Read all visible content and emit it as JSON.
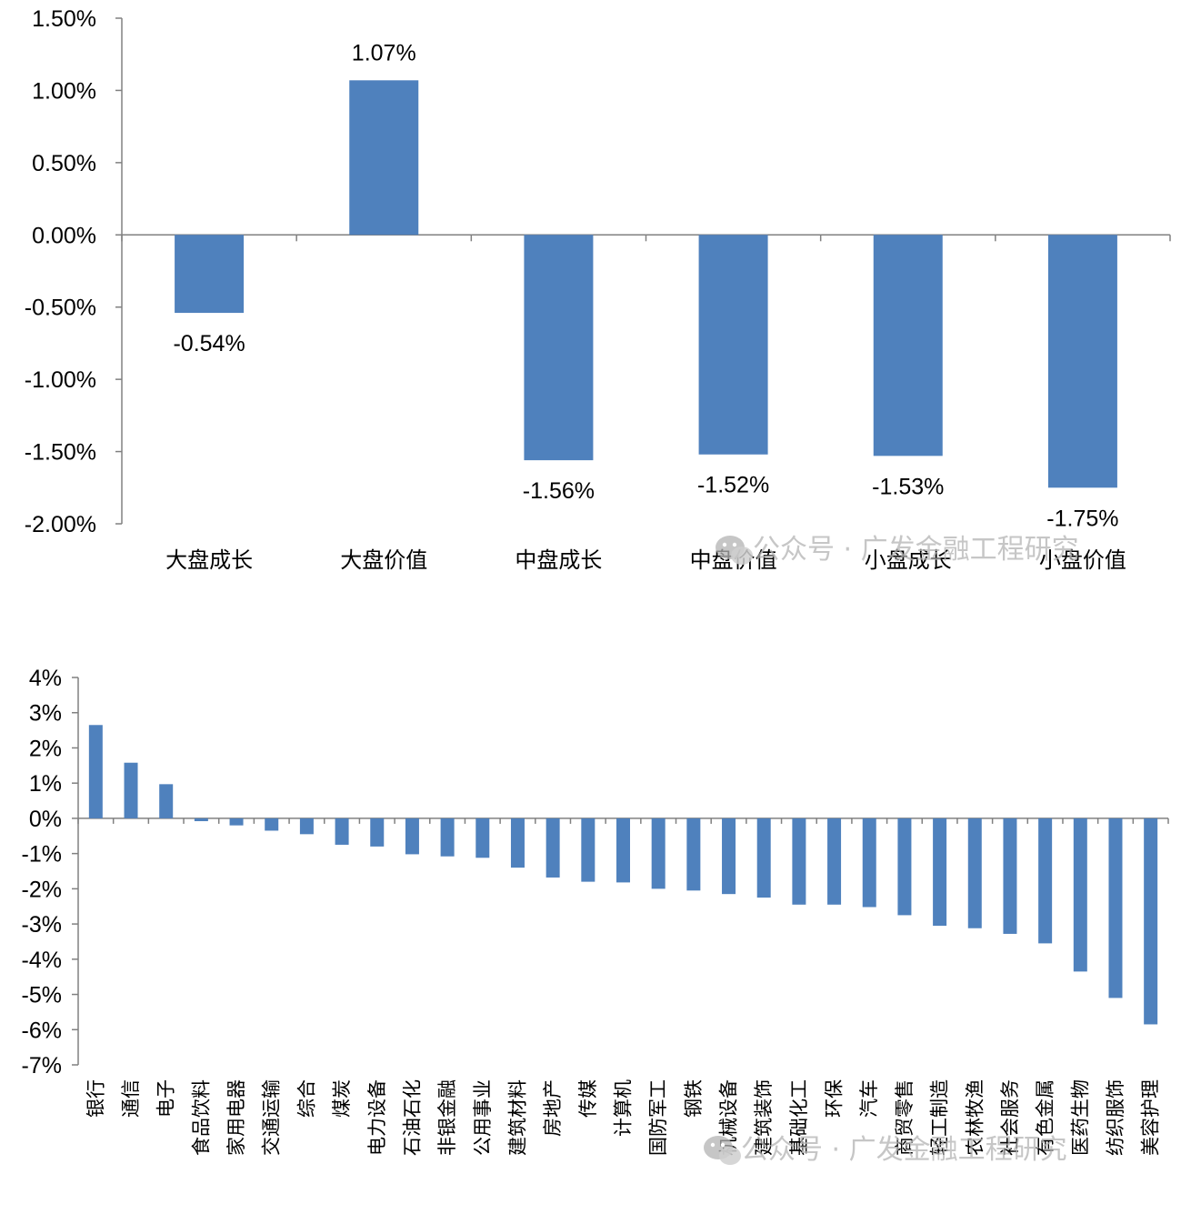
{
  "colors": {
    "bar": "#4f81bd",
    "axis": "#808080",
    "text": "#000000",
    "watermark": "#b3b3b3"
  },
  "watermark": {
    "icon": "wechat-icon",
    "text1": "公众号 · 广发金融工程研究",
    "text2": "公众号 · 广发金融工程研究"
  },
  "chart_data": [
    {
      "type": "bar",
      "categories": [
        "大盘成长",
        "大盘价值",
        "中盘成长",
        "中盘价值",
        "小盘成长",
        "小盘价值"
      ],
      "values": [
        -0.54,
        1.07,
        -1.56,
        -1.52,
        -1.53,
        -1.75
      ],
      "data_labels": [
        "-0.54%",
        "1.07%",
        "-1.56%",
        "-1.52%",
        "-1.53%",
        "-1.75%"
      ],
      "ylim": [
        -2.0,
        1.5
      ],
      "yticks": [
        1.5,
        1.0,
        0.5,
        0.0,
        -0.5,
        -1.0,
        -1.5,
        -2.0
      ],
      "ytick_labels": [
        "1.50%",
        "1.00%",
        "0.50%",
        "0.00%",
        "-0.50%",
        "-1.00%",
        "-1.50%",
        "-2.00%"
      ],
      "unit": "%",
      "grid": false
    },
    {
      "type": "bar",
      "categories": [
        "银行",
        "通信",
        "电子",
        "食品饮料",
        "家用电器",
        "交通运输",
        "综合",
        "煤炭",
        "电力设备",
        "石油石化",
        "非银金融",
        "公用事业",
        "建筑材料",
        "房地产",
        "传媒",
        "计算机",
        "国防军工",
        "钢铁",
        "机械设备",
        "建筑装饰",
        "基础化工",
        "环保",
        "汽车",
        "商贸零售",
        "轻工制造",
        "农林牧渔",
        "社会服务",
        "有色金属",
        "医药生物",
        "纺织服饰",
        "美容护理"
      ],
      "values": [
        2.65,
        1.58,
        0.97,
        -0.08,
        -0.2,
        -0.35,
        -0.45,
        -0.75,
        -0.8,
        -1.02,
        -1.08,
        -1.12,
        -1.4,
        -1.68,
        -1.8,
        -1.82,
        -2.0,
        -2.05,
        -2.15,
        -2.25,
        -2.45,
        -2.45,
        -2.52,
        -2.75,
        -3.05,
        -3.12,
        -3.28,
        -3.55,
        -4.35,
        -5.1,
        -5.85
      ],
      "ylim": [
        -7,
        4
      ],
      "yticks": [
        4,
        3,
        2,
        1,
        0,
        -1,
        -2,
        -3,
        -4,
        -5,
        -6,
        -7
      ],
      "ytick_labels": [
        "4%",
        "3%",
        "2%",
        "1%",
        "0%",
        "-1%",
        "-2%",
        "-3%",
        "-4%",
        "-5%",
        "-6%",
        "-7%"
      ],
      "unit": "%",
      "grid": false
    }
  ]
}
